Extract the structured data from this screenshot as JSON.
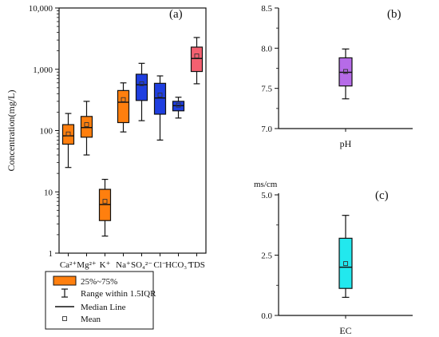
{
  "chart_data": [
    {
      "type": "box",
      "panel_label": "(a)",
      "ylabel": "Concentration(mg/L)",
      "yscale": "log",
      "ylim": [
        1,
        10000
      ],
      "yticks": [
        "1",
        "10",
        "100",
        "1,000",
        "10,000"
      ],
      "categories": [
        "Ca²⁺",
        "Mg²⁺",
        "K⁺",
        "Na⁺",
        "SO₄²⁻",
        "Cl⁻",
        "HCO₃⁻",
        "TDS"
      ],
      "boxes": [
        {
          "category": "Ca²⁺",
          "color": "#ff7f0e",
          "whisker_low": 25,
          "q1": 60,
          "median": 82,
          "q3": 125,
          "whisker_high": 190,
          "mean": 88
        },
        {
          "category": "Mg²⁺",
          "color": "#ff7f0e",
          "whisker_low": 40,
          "q1": 78,
          "median": 112,
          "q3": 170,
          "whisker_high": 300,
          "mean": 125
        },
        {
          "category": "K⁺",
          "color": "#ff7f0e",
          "whisker_low": 1.9,
          "q1": 3.4,
          "median": 6.2,
          "q3": 11,
          "whisker_high": 16,
          "mean": 7
        },
        {
          "category": "Na⁺",
          "color": "#ff7f0e",
          "whisker_low": 95,
          "q1": 135,
          "median": 290,
          "q3": 450,
          "whisker_high": 600,
          "mean": 320
        },
        {
          "category": "SO₄²⁻",
          "color": "#1f3fe0",
          "whisker_low": 145,
          "q1": 310,
          "median": 560,
          "q3": 830,
          "whisker_high": 1250,
          "mean": 580
        },
        {
          "category": "Cl⁻",
          "color": "#1f3fe0",
          "whisker_low": 70,
          "q1": 185,
          "median": 340,
          "q3": 590,
          "whisker_high": 780,
          "mean": 380
        },
        {
          "category": "HCO₃⁻",
          "color": "#1f3fe0",
          "whisker_low": 160,
          "q1": 210,
          "median": 255,
          "q3": 300,
          "whisker_high": 350,
          "mean": 260
        },
        {
          "category": "TDS",
          "color": "#f46070",
          "whisker_low": 580,
          "q1": 920,
          "median": 1500,
          "q3": 2300,
          "whisker_high": 3300,
          "mean": 1650
        }
      ],
      "legend": {
        "placement": "below",
        "entries": [
          "25%~75%",
          "Range within 1.5IQR",
          "Median Line",
          "Mean"
        ]
      }
    },
    {
      "type": "box",
      "panel_label": "(b)",
      "xlabel": "pH",
      "ylim": [
        7.0,
        8.5
      ],
      "yticks": [
        "7.0",
        "7.5",
        "8.0",
        "8.5"
      ],
      "boxes": [
        {
          "category": "pH",
          "color": "#b66be8",
          "whisker_low": 7.37,
          "q1": 7.53,
          "median": 7.7,
          "q3": 7.88,
          "whisker_high": 7.99,
          "mean": 7.71
        }
      ]
    },
    {
      "type": "box",
      "panel_label": "(c)",
      "xlabel": "EC",
      "unit": "ms/cm",
      "ylim": [
        0.0,
        5.0
      ],
      "yticks": [
        "0.0",
        "2.5",
        "5.0"
      ],
      "boxes": [
        {
          "category": "EC",
          "color": "#22e8ee",
          "whisker_low": 0.75,
          "q1": 1.12,
          "median": 2.0,
          "q3": 3.2,
          "whisker_high": 4.15,
          "mean": 2.15
        }
      ]
    }
  ]
}
